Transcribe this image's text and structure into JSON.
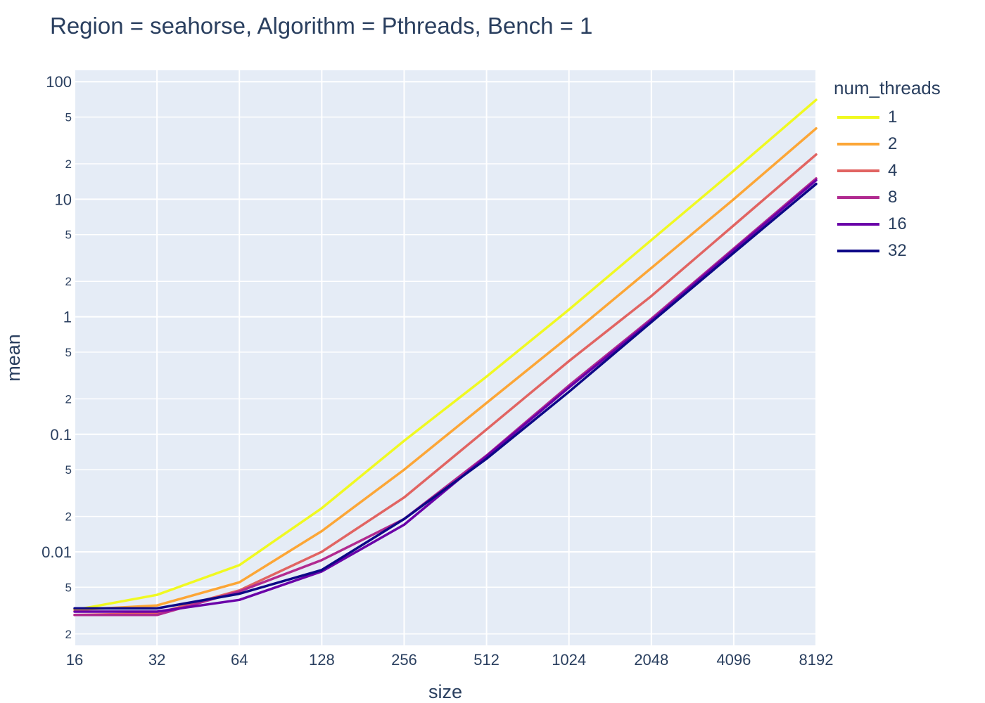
{
  "chart_data": {
    "type": "line",
    "title": "Region = seahorse, Algorithm = Pthreads, Bench = 1",
    "xlabel": "size",
    "ylabel": "mean",
    "x_scale": "log2",
    "y_scale": "log10",
    "x": [
      16,
      32,
      64,
      128,
      256,
      512,
      1024,
      2048,
      4096,
      8192
    ],
    "x_tick_labels": [
      "16",
      "32",
      "64",
      "128",
      "256",
      "512",
      "1024",
      "2048",
      "4096",
      "8192"
    ],
    "xlim": [
      16,
      8192
    ],
    "ylim": [
      0.0016,
      125
    ],
    "y_major_tick_labels": [
      "0.01",
      "0.1",
      "1",
      "10",
      "100"
    ],
    "y_major_tick_values": [
      0.01,
      0.1,
      1,
      10,
      100
    ],
    "y_minor_tick_labels": [
      "2",
      "5"
    ],
    "legend_title": "num_threads",
    "legend_position": "right",
    "grid": true,
    "plot_background": "#e5ecf6",
    "series": [
      {
        "name": "1",
        "color": "#f0f921",
        "values": [
          0.0032,
          0.0043,
          0.0077,
          0.0235,
          0.088,
          0.31,
          1.15,
          4.5,
          17.5,
          70
        ]
      },
      {
        "name": "2",
        "color": "#fca636",
        "values": [
          0.0032,
          0.0035,
          0.0055,
          0.015,
          0.05,
          0.185,
          0.68,
          2.6,
          10.0,
          40
        ]
      },
      {
        "name": "4",
        "color": "#e16462",
        "values": [
          0.0029,
          0.003,
          0.0047,
          0.01,
          0.029,
          0.11,
          0.42,
          1.5,
          6.0,
          24
        ]
      },
      {
        "name": "8",
        "color": "#b12a90",
        "values": [
          0.0029,
          0.0029,
          0.0046,
          0.0085,
          0.019,
          0.066,
          0.26,
          0.96,
          3.8,
          15
        ]
      },
      {
        "name": "16",
        "color": "#6a00a8",
        "values": [
          0.0031,
          0.0031,
          0.0039,
          0.0068,
          0.017,
          0.065,
          0.25,
          0.93,
          3.7,
          14.5
        ]
      },
      {
        "name": "32",
        "color": "#0d0887",
        "values": [
          0.0033,
          0.0033,
          0.0044,
          0.007,
          0.019,
          0.062,
          0.23,
          0.9,
          3.5,
          13.5
        ]
      }
    ]
  }
}
